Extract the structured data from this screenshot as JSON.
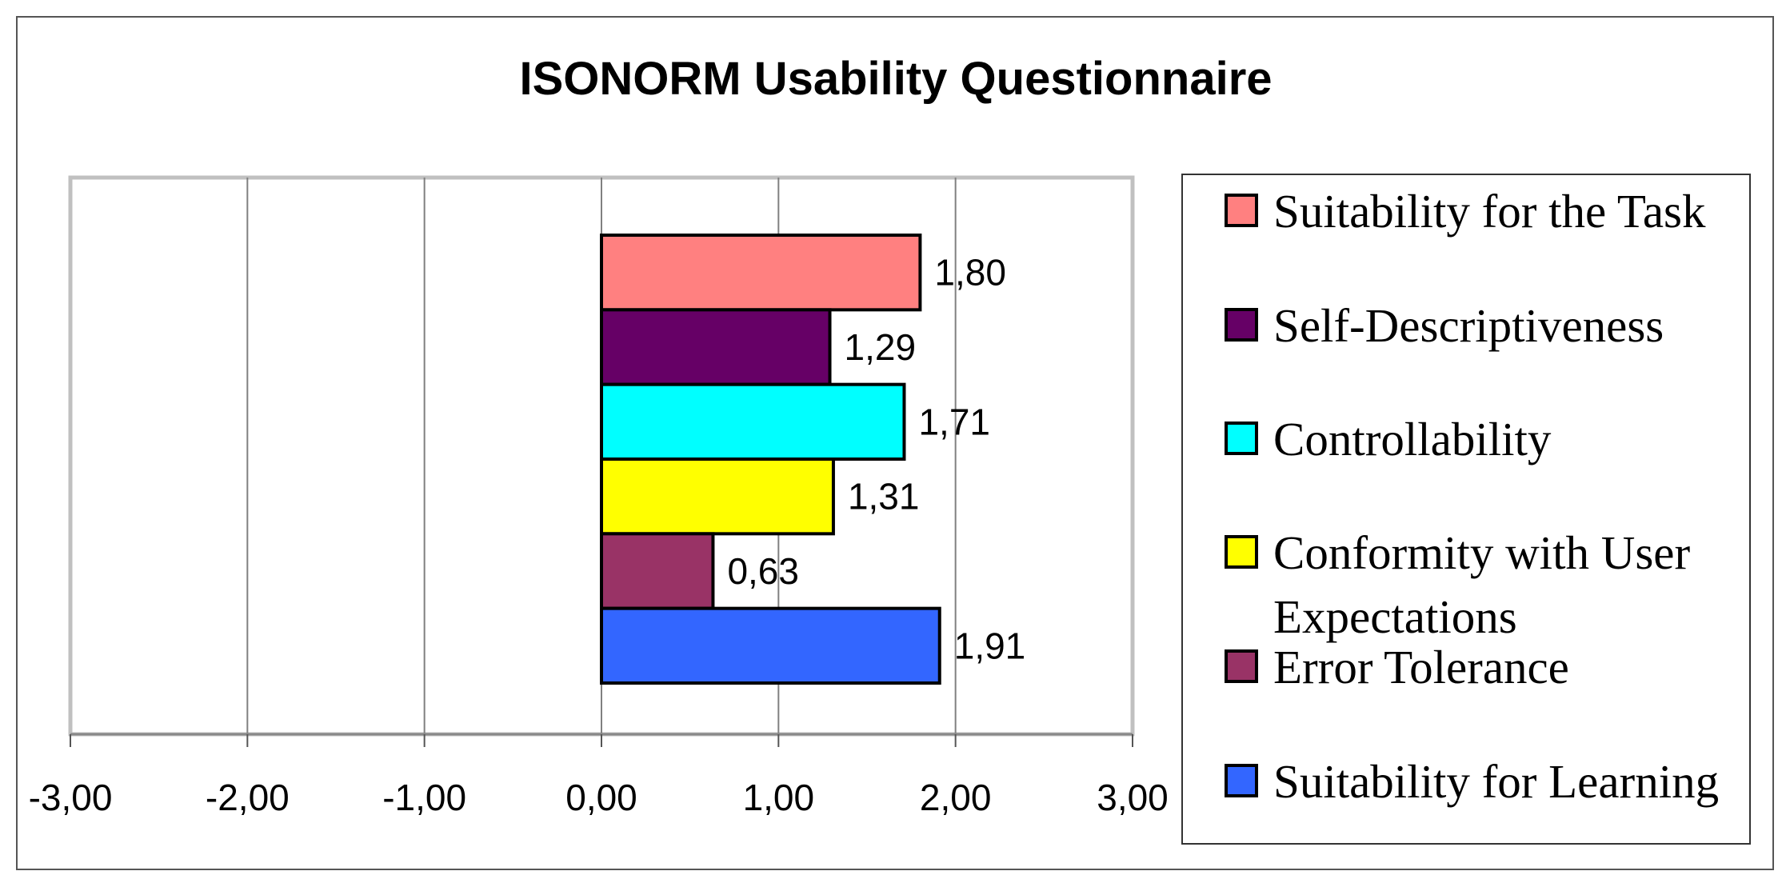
{
  "chart_data": {
    "type": "bar",
    "orientation": "horizontal",
    "title": "ISONORM Usability Questionnaire",
    "xlabel": "",
    "ylabel": "",
    "xlim": [
      -3,
      3
    ],
    "xticks": [
      -3,
      -2,
      -1,
      0,
      1,
      2,
      3
    ],
    "xtick_labels": [
      "-3,00",
      "-2,00",
      "-1,00",
      "0,00",
      "1,00",
      "2,00",
      "3,00"
    ],
    "grid": "vertical",
    "legend_position": "right",
    "series": [
      {
        "name": "Suitability for the Task",
        "value": 1.8,
        "label": "1,80",
        "color": "#FF8080"
      },
      {
        "name": "Self-Descriptiveness",
        "value": 1.29,
        "label": "1,29",
        "color": "#660066"
      },
      {
        "name": "Controllability",
        "value": 1.71,
        "label": "1,71",
        "color": "#00FFFF"
      },
      {
        "name": "Conformity with User Expectations",
        "value": 1.31,
        "label": "1,31",
        "color": "#FFFF00",
        "legend_lines": [
          "Conformity with User",
          "Expectations"
        ]
      },
      {
        "name": "Error Tolerance",
        "value": 0.63,
        "label": "0,63",
        "color": "#993366"
      },
      {
        "name": "Suitability for Learning",
        "value": 1.91,
        "label": "1,91",
        "color": "#3366FF"
      }
    ]
  }
}
